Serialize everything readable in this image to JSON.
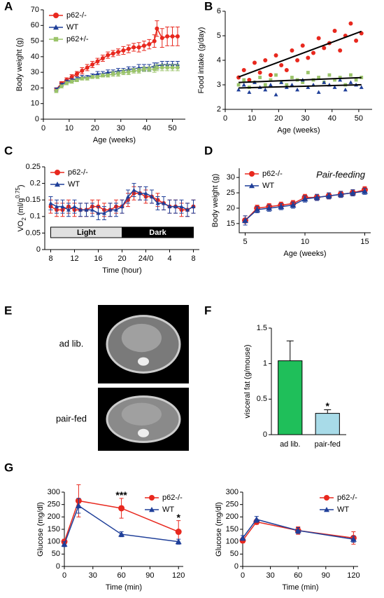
{
  "chart_data": [
    {
      "type": "line",
      "panel_label": "A",
      "x_label": "Age (weeks)",
      "y_label": "Body weight (g)",
      "legend": "upper left",
      "x": [
        5,
        7,
        9,
        11,
        13,
        15,
        17,
        19,
        21,
        23,
        25,
        27,
        29,
        31,
        33,
        35,
        37,
        39,
        41,
        43,
        44,
        46,
        48,
        50,
        52
      ],
      "xlim": [
        0,
        55
      ],
      "xticks": [
        0,
        10,
        20,
        30,
        40,
        50
      ],
      "ylim": [
        0,
        70
      ],
      "yticks": [
        0,
        10,
        20,
        30,
        40,
        50,
        60,
        70
      ],
      "series": [
        {
          "name": "p62-/-",
          "color": "#e8281e",
          "marker": "circle",
          "values": [
            19,
            23,
            25,
            27,
            29,
            31,
            33,
            35,
            37,
            39,
            41,
            42,
            43,
            44,
            45,
            46,
            46,
            47,
            48,
            50,
            58,
            52,
            53,
            53,
            53
          ],
          "errors": [
            1,
            1,
            1.5,
            1.5,
            1.5,
            2,
            2,
            2,
            2,
            2,
            2,
            2,
            2,
            2.5,
            2.5,
            2.5,
            3,
            3,
            3,
            4,
            5,
            6,
            6,
            6,
            6
          ]
        },
        {
          "name": "WT",
          "color": "#1f3f99",
          "marker": "triangle",
          "values": [
            19,
            22,
            24,
            25,
            26,
            27,
            27,
            28,
            29,
            29,
            30,
            30,
            31,
            31,
            32,
            32,
            33,
            33,
            33,
            34,
            34,
            35,
            35,
            35,
            35
          ],
          "errors": [
            1,
            1,
            1,
            1,
            1,
            1,
            1,
            1,
            1.5,
            1.5,
            1.5,
            1.5,
            1.5,
            1.5,
            1.5,
            1.5,
            2,
            2,
            2,
            2,
            2,
            2,
            2,
            2,
            2
          ]
        },
        {
          "name": "p62+/-",
          "color": "#9bc46a",
          "marker": "square",
          "values": [
            18,
            21,
            23,
            24,
            25,
            26,
            26,
            27,
            27,
            28,
            28,
            29,
            29,
            30,
            30,
            31,
            31,
            32,
            32,
            32,
            33,
            33,
            33,
            33,
            33
          ],
          "errors": [
            1,
            1,
            1,
            1,
            1,
            1,
            1,
            1,
            1,
            1,
            1,
            1.5,
            1.5,
            1.5,
            1.5,
            1.5,
            1.5,
            1.5,
            1.5,
            2,
            2,
            2,
            2,
            2,
            2
          ]
        }
      ]
    },
    {
      "type": "scatter",
      "panel_label": "B",
      "x_label": "Age (weeks)",
      "y_label": "Food intake (g/day)",
      "trendline": true,
      "x": [
        5,
        7,
        9,
        11,
        13,
        15,
        17,
        19,
        21,
        23,
        25,
        27,
        29,
        31,
        33,
        35,
        37,
        39,
        41,
        43,
        45,
        47,
        49,
        51
      ],
      "xlim": [
        0,
        55
      ],
      "xticks": [
        0,
        10,
        20,
        30,
        40,
        50
      ],
      "ylim": [
        2,
        6
      ],
      "yticks": [
        2,
        3,
        4,
        5,
        6
      ],
      "series": [
        {
          "color": "#e8281e",
          "marker": "circle",
          "values": [
            3.3,
            3.6,
            3.2,
            3.9,
            3.5,
            4.0,
            3.4,
            4.2,
            3.8,
            3.6,
            4.4,
            4.0,
            4.6,
            4.1,
            4.3,
            4.9,
            4.5,
            4.7,
            5.2,
            4.4,
            5.0,
            5.5,
            4.8,
            5.1
          ]
        },
        {
          "color": "#9bc46a",
          "marker": "square",
          "values": [
            3.0,
            3.2,
            2.9,
            3.1,
            3.3,
            3.0,
            3.2,
            3.4,
            3.1,
            3.0,
            3.3,
            3.2,
            3.1,
            3.5,
            3.2,
            3.3,
            3.1,
            3.4,
            3.2,
            3.3,
            3.0,
            3.4,
            3.2,
            3.3
          ]
        },
        {
          "color": "#1f3f99",
          "marker": "triangle",
          "values": [
            2.8,
            3.0,
            2.7,
            3.1,
            2.9,
            2.8,
            3.0,
            2.6,
            3.1,
            2.9,
            3.0,
            2.8,
            3.2,
            2.9,
            3.0,
            2.7,
            3.1,
            3.0,
            2.9,
            3.2,
            2.8,
            3.1,
            3.0,
            2.9
          ]
        }
      ]
    },
    {
      "type": "line",
      "panel_label": "C",
      "x_label": "Time (hour)",
      "y_label_parts": [
        "VO",
        "2",
        " (ml/g",
        "0.75",
        ")"
      ],
      "legend": "upper left",
      "x": [
        0,
        1,
        2,
        3,
        4,
        5,
        6,
        7,
        8,
        9,
        10,
        11,
        12,
        13,
        14,
        15,
        16,
        17,
        18,
        19,
        20,
        21,
        22,
        23,
        24
      ],
      "xlim": [
        -1,
        25
      ],
      "xticks": [
        {
          "value": 0,
          "label": "8"
        },
        {
          "value": 4,
          "label": "12"
        },
        {
          "value": 8,
          "label": "16"
        },
        {
          "value": 12,
          "label": "20"
        },
        {
          "value": 16,
          "label": "24/0"
        },
        {
          "value": 20,
          "label": "4"
        },
        {
          "value": 24,
          "label": "8"
        }
      ],
      "ylim": [
        0,
        0.25
      ],
      "yticks": [
        0,
        0.05,
        0.1,
        0.15,
        0.2,
        0.25
      ],
      "bands": [
        {
          "label": "Light",
          "from": 0,
          "to": 12,
          "color": "#e0e0e0",
          "text_color": "#000"
        },
        {
          "label": "Dark",
          "from": 12,
          "to": 24,
          "color": "#000",
          "text_color": "#fff"
        }
      ],
      "series": [
        {
          "name": "p62-/-",
          "color": "#e8281e",
          "marker": "circle",
          "values": [
            0.13,
            0.12,
            0.12,
            0.13,
            0.12,
            0.12,
            0.12,
            0.13,
            0.13,
            0.12,
            0.12,
            0.13,
            0.13,
            0.15,
            0.17,
            0.17,
            0.16,
            0.16,
            0.15,
            0.14,
            0.13,
            0.13,
            0.12,
            0.12,
            0.13
          ],
          "errors": [
            0.02,
            0.02,
            0.02,
            0.02,
            0.02,
            0.02,
            0.02,
            0.02,
            0.02,
            0.02,
            0.02,
            0.02,
            0.02,
            0.02,
            0.02,
            0.02,
            0.02,
            0.02,
            0.02,
            0.02,
            0.02,
            0.02,
            0.02,
            0.02,
            0.02
          ]
        },
        {
          "name": "WT",
          "color": "#1f3f99",
          "marker": "triangle",
          "values": [
            0.14,
            0.13,
            0.13,
            0.12,
            0.13,
            0.12,
            0.12,
            0.12,
            0.11,
            0.11,
            0.12,
            0.12,
            0.13,
            0.16,
            0.18,
            0.17,
            0.17,
            0.16,
            0.14,
            0.14,
            0.13,
            0.13,
            0.13,
            0.12,
            0.13
          ],
          "errors": [
            0.02,
            0.02,
            0.02,
            0.02,
            0.02,
            0.02,
            0.02,
            0.02,
            0.02,
            0.02,
            0.02,
            0.02,
            0.02,
            0.02,
            0.02,
            0.02,
            0.02,
            0.02,
            0.02,
            0.02,
            0.02,
            0.02,
            0.02,
            0.02,
            0.02
          ]
        }
      ]
    },
    {
      "type": "line",
      "panel_label": "D",
      "x_label": "Age (weeks)",
      "y_label": "Body weight (g)",
      "legend": "upper left",
      "annotation": "Pair-feeding",
      "x": [
        5,
        6,
        7,
        8,
        9,
        10,
        11,
        12,
        13,
        14,
        15
      ],
      "xlim": [
        4.5,
        15.5
      ],
      "xticks": [
        5,
        10,
        15
      ],
      "ylim": [
        12,
        33
      ],
      "yticks": [
        15,
        20,
        25,
        30
      ],
      "series": [
        {
          "name": "p62-/-",
          "color": "#e8281e",
          "marker": "circle",
          "values": [
            16,
            20,
            20.5,
            21,
            21.5,
            23.5,
            23.5,
            24,
            24.5,
            25,
            26
          ],
          "errors": [
            1.5,
            1,
            1,
            1,
            1,
            1,
            1,
            1,
            1,
            1,
            1
          ]
        },
        {
          "name": "WT",
          "color": "#1f3f99",
          "marker": "triangle",
          "values": [
            16,
            19.5,
            20,
            20.5,
            21,
            23,
            23.5,
            24,
            24.5,
            25,
            25.5
          ],
          "errors": [
            1.5,
            1,
            1,
            1,
            1,
            1,
            1,
            1,
            1,
            1,
            1
          ]
        }
      ]
    },
    {
      "type": "image",
      "panel_label": "E",
      "labels": [
        "ad lib.",
        "pair-fed"
      ]
    },
    {
      "type": "bar",
      "panel_label": "F",
      "y_label": "visceral fat (g/mouse)",
      "categories": [
        "ad lib.",
        "pair-fed"
      ],
      "values": [
        1.04,
        0.3
      ],
      "errors": [
        0.28,
        0.05
      ],
      "colors": [
        "#1fbf5a",
        "#a8dbe8"
      ],
      "ylim": [
        0,
        1.5
      ],
      "yticks": [
        0,
        0.5,
        1,
        1.5
      ],
      "annotations": [
        {
          "text": "*",
          "x": 1,
          "y": 0.39
        }
      ]
    },
    {
      "type": "line",
      "panel_label": "G",
      "x_label": "Time (min)",
      "y_label": "Glucose (mg/dl)",
      "legend": "upper right",
      "x": [
        0,
        15,
        60,
        120
      ],
      "xlim": [
        0,
        125
      ],
      "xticks": [
        0,
        30,
        60,
        90,
        120
      ],
      "ylim": [
        0,
        300
      ],
      "yticks": [
        0,
        50,
        100,
        150,
        200,
        250,
        300
      ],
      "annotations": [
        {
          "text": "***",
          "x": 60,
          "y": 285
        },
        {
          "text": "*",
          "x": 120,
          "y": 195
        }
      ],
      "series": [
        {
          "name": "p62-/-",
          "color": "#e8281e",
          "marker": "circle",
          "values": [
            100,
            265,
            235,
            140
          ],
          "errors": [
            10,
            65,
            40,
            45
          ]
        },
        {
          "name": "WT",
          "color": "#1f3f99",
          "marker": "triangle",
          "values": [
            90,
            245,
            130,
            100
          ],
          "errors": [
            10,
            30,
            10,
            10
          ]
        }
      ]
    },
    {
      "type": "line",
      "x_label": "Time (min)",
      "y_label": "Glucose (mg/dl)",
      "legend": "upper right",
      "x": [
        0,
        15,
        60,
        120
      ],
      "xlim": [
        0,
        125
      ],
      "xticks": [
        0,
        30,
        60,
        90,
        120
      ],
      "ylim": [
        0,
        300
      ],
      "yticks": [
        0,
        50,
        100,
        150,
        200,
        250,
        300
      ],
      "series": [
        {
          "name": "p62-/-",
          "color": "#e8281e",
          "marker": "circle",
          "values": [
            105,
            180,
            145,
            115
          ],
          "errors": [
            10,
            10,
            15,
            25
          ]
        },
        {
          "name": "WT",
          "color": "#1f3f99",
          "marker": "triangle",
          "values": [
            115,
            190,
            145,
            110
          ],
          "errors": [
            10,
            12,
            12,
            12
          ]
        }
      ]
    }
  ]
}
